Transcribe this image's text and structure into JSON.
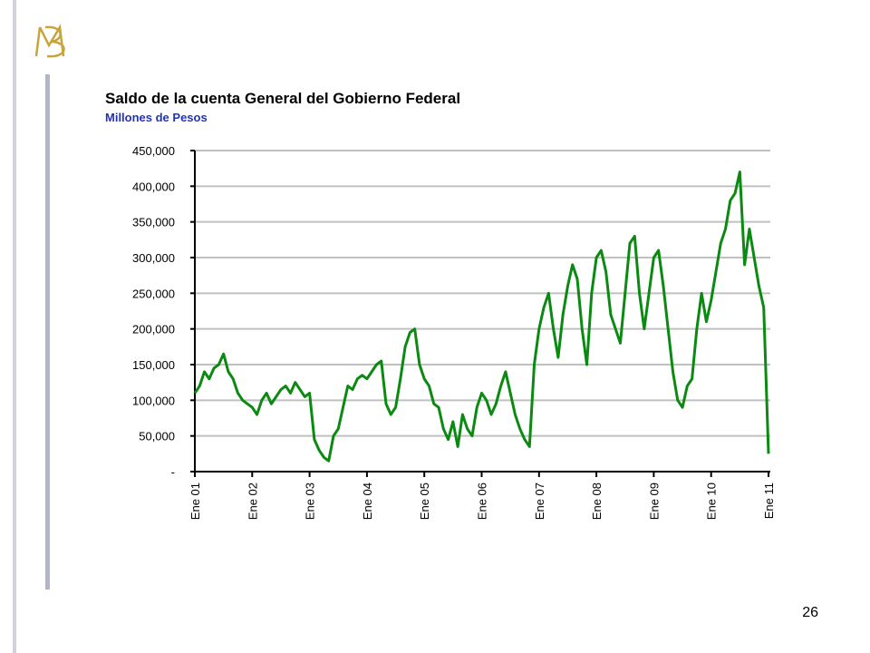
{
  "page_number": "26",
  "chart_data": {
    "type": "line",
    "title": "Saldo de la cuenta General del Gobierno Federal",
    "subtitle": "Millones de Pesos",
    "x": [
      0,
      1,
      2,
      3,
      4,
      5,
      6,
      7,
      8,
      9,
      10,
      11,
      12,
      13,
      14,
      15,
      16,
      17,
      18,
      19,
      20,
      21,
      22,
      23,
      24,
      25,
      26,
      27,
      28,
      29,
      30,
      31,
      32,
      33,
      34,
      35,
      36,
      37,
      38,
      39,
      40,
      41,
      42,
      43,
      44,
      45,
      46,
      47,
      48,
      49,
      50,
      51,
      52,
      53,
      54,
      55,
      56,
      57,
      58,
      59,
      60,
      61,
      62,
      63,
      64,
      65,
      66,
      67,
      68,
      69,
      70,
      71,
      72,
      73,
      74,
      75,
      76,
      77,
      78,
      79,
      80,
      81,
      82,
      83,
      84,
      85,
      86,
      87,
      88,
      89,
      90,
      91,
      92,
      93,
      94,
      95,
      96,
      97,
      98,
      99,
      100,
      101,
      102,
      103,
      104,
      105,
      106,
      107,
      108,
      109,
      110,
      111,
      112,
      113,
      114,
      115,
      116,
      117,
      118,
      119,
      120
    ],
    "series": [
      {
        "name": "Saldo",
        "color": "#0b8a12",
        "values": [
          110000,
          120000,
          140000,
          130000,
          145000,
          150000,
          165000,
          140000,
          130000,
          110000,
          100000,
          95000,
          90000,
          80000,
          100000,
          110000,
          95000,
          105000,
          115000,
          120000,
          110000,
          125000,
          115000,
          105000,
          110000,
          45000,
          30000,
          20000,
          15000,
          50000,
          60000,
          90000,
          120000,
          115000,
          130000,
          135000,
          130000,
          140000,
          150000,
          155000,
          95000,
          80000,
          90000,
          130000,
          175000,
          195000,
          200000,
          150000,
          130000,
          120000,
          95000,
          90000,
          60000,
          45000,
          70000,
          35000,
          80000,
          60000,
          50000,
          90000,
          110000,
          100000,
          80000,
          95000,
          120000,
          140000,
          110000,
          80000,
          60000,
          45000,
          35000,
          150000,
          200000,
          230000,
          250000,
          200000,
          160000,
          220000,
          260000,
          290000,
          270000,
          200000,
          150000,
          250000,
          300000,
          310000,
          280000,
          220000,
          200000,
          180000,
          250000,
          320000,
          330000,
          250000,
          200000,
          250000,
          300000,
          310000,
          260000,
          200000,
          140000,
          100000,
          90000,
          120000,
          130000,
          200000,
          250000,
          210000,
          240000,
          280000,
          320000,
          340000,
          380000,
          390000,
          420000,
          290000,
          340000,
          300000,
          260000,
          230000,
          25000
        ]
      }
    ],
    "xlim": [
      0,
      120
    ],
    "xticks": [
      {
        "value": 0,
        "label": "Ene 01"
      },
      {
        "value": 12,
        "label": "Ene 02"
      },
      {
        "value": 24,
        "label": "Ene 03"
      },
      {
        "value": 36,
        "label": "Ene 04"
      },
      {
        "value": 48,
        "label": "Ene 05"
      },
      {
        "value": 60,
        "label": "Ene 06"
      },
      {
        "value": 72,
        "label": "Ene 07"
      },
      {
        "value": 84,
        "label": "Ene 08"
      },
      {
        "value": 96,
        "label": "Ene 09"
      },
      {
        "value": 108,
        "label": "Ene 10"
      },
      {
        "value": 120,
        "label": "Ene 11"
      }
    ],
    "ylim": [
      0,
      450000
    ],
    "yticks": [
      {
        "value": 0,
        "label": "-"
      },
      {
        "value": 50000,
        "label": "50,000"
      },
      {
        "value": 100000,
        "label": "100,000"
      },
      {
        "value": 150000,
        "label": "150,000"
      },
      {
        "value": 200000,
        "label": "200,000"
      },
      {
        "value": 250000,
        "label": "250,000"
      },
      {
        "value": 300000,
        "label": "300,000"
      },
      {
        "value": 350000,
        "label": "350,000"
      },
      {
        "value": 400000,
        "label": "400,000"
      },
      {
        "value": 450000,
        "label": "450,000"
      }
    ],
    "grid": true
  }
}
